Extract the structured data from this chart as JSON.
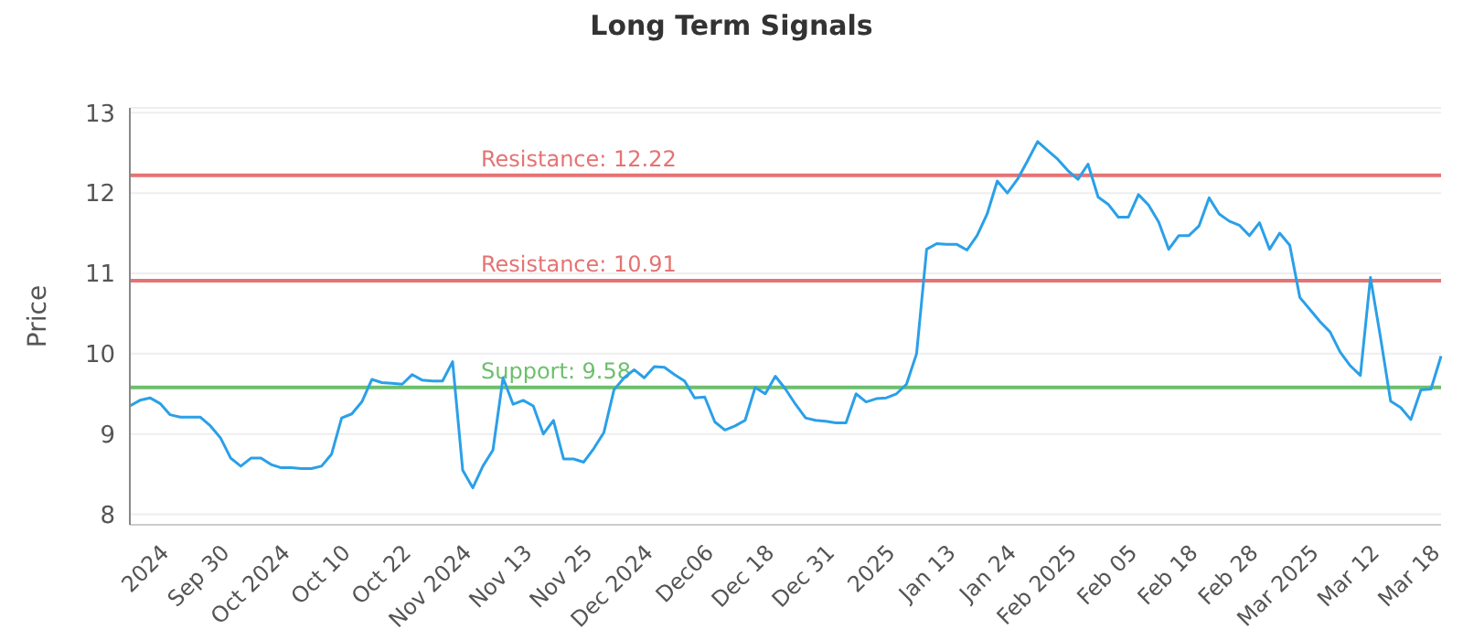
{
  "chart_data": {
    "type": "line",
    "title": "Long Term Signals",
    "ylabel": "Price",
    "categories": [
      null,
      null,
      null,
      null,
      "2024",
      null,
      null,
      null,
      null,
      null,
      "Sep 30",
      null,
      null,
      null,
      null,
      null,
      "Oct 2024",
      null,
      null,
      null,
      null,
      null,
      "Oct 10",
      null,
      null,
      null,
      null,
      null,
      "Oct 22",
      null,
      null,
      null,
      null,
      null,
      "Nov 2024",
      null,
      null,
      null,
      null,
      null,
      "Nov 13",
      null,
      null,
      null,
      null,
      null,
      "Nov 25",
      null,
      null,
      null,
      null,
      null,
      "Dec 2024",
      null,
      null,
      null,
      null,
      null,
      "Dec06",
      null,
      null,
      null,
      null,
      null,
      "Dec 18",
      null,
      null,
      null,
      null,
      null,
      "Dec 31",
      null,
      null,
      null,
      null,
      null,
      "2025",
      null,
      null,
      null,
      null,
      null,
      "Jan 13",
      null,
      null,
      null,
      null,
      null,
      "Jan 24",
      null,
      null,
      null,
      null,
      null,
      "Feb 2025",
      null,
      null,
      null,
      null,
      null,
      "Feb 05",
      null,
      null,
      null,
      null,
      null,
      "Feb 18",
      null,
      null,
      null,
      null,
      null,
      "Feb 28",
      null,
      null,
      null,
      null,
      null,
      "Mar 2025",
      null,
      null,
      null,
      null,
      null,
      "Mar 12",
      null,
      null,
      null,
      null,
      null,
      "Mar 18"
    ],
    "series": [
      {
        "color": "#2aa0e8",
        "values": [
          9.35,
          9.42,
          9.45,
          9.38,
          9.24,
          9.21,
          9.21,
          9.21,
          9.1,
          8.95,
          8.7,
          8.6,
          8.7,
          8.7,
          8.62,
          8.58,
          8.58,
          8.57,
          8.57,
          8.6,
          8.75,
          9.2,
          9.25,
          9.4,
          9.68,
          9.64,
          9.63,
          9.62,
          9.74,
          9.67,
          9.66,
          9.66,
          9.9,
          8.55,
          8.33,
          8.6,
          8.8,
          9.7,
          9.37,
          9.42,
          9.35,
          9.0,
          9.17,
          8.69,
          8.69,
          8.65,
          8.82,
          9.02,
          9.55,
          9.7,
          9.8,
          9.7,
          9.84,
          9.83,
          9.74,
          9.66,
          9.45,
          9.46,
          9.15,
          9.05,
          9.1,
          9.17,
          9.58,
          9.5,
          9.72,
          9.56,
          9.37,
          9.2,
          9.17,
          9.16,
          9.14,
          9.14,
          9.5,
          9.4,
          9.44,
          9.45,
          9.5,
          9.62,
          10.0,
          11.3,
          11.37,
          11.36,
          11.36,
          11.29,
          11.47,
          11.74,
          12.15,
          12.0,
          12.17,
          12.4,
          12.64,
          12.53,
          12.42,
          12.28,
          12.17,
          12.36,
          11.95,
          11.86,
          11.7,
          11.7,
          11.98,
          11.85,
          11.64,
          11.3,
          11.47,
          11.47,
          11.59,
          11.94,
          11.74,
          11.65,
          11.6,
          11.47,
          11.63,
          11.3,
          11.5,
          11.35,
          10.7,
          10.55,
          10.4,
          10.27,
          10.02,
          9.85,
          9.73,
          10.95,
          10.2,
          9.41,
          9.33,
          9.18,
          9.55,
          9.56,
          9.97
        ]
      }
    ],
    "ylim": [
      7.87,
      13.06
    ],
    "yticks": [
      8,
      9,
      10,
      11,
      12,
      13
    ],
    "grid": "y",
    "ref_lines": [
      {
        "axis": "y",
        "value": 12.22,
        "label": "Resistance: 12.22",
        "color": "#e57373"
      },
      {
        "axis": "y",
        "value": 10.91,
        "label": "Resistance: 10.91",
        "color": "#e57373"
      },
      {
        "axis": "y",
        "value": 9.58,
        "label": "Support: 9.58",
        "color": "#6cbf6c"
      }
    ]
  }
}
